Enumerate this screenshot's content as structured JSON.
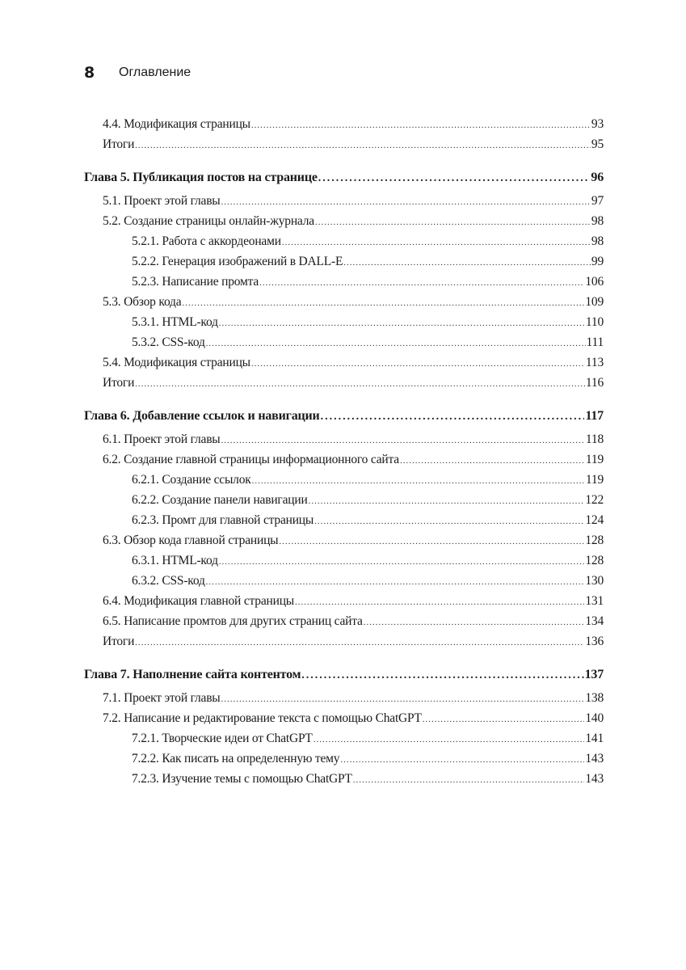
{
  "header": {
    "page_number": "8",
    "title": "Оглавление"
  },
  "entries": [
    {
      "level": 1,
      "title": "4.4. Модификация страницы",
      "page": "93"
    },
    {
      "level": 1,
      "title": "Итоги",
      "page": "95"
    },
    {
      "level": 0,
      "title": "Глава 5. Публикация постов на странице",
      "page": "96"
    },
    {
      "level": 1,
      "title": "5.1. Проект этой главы",
      "page": "97"
    },
    {
      "level": 1,
      "title": "5.2. Создание страницы онлайн-журнала",
      "page": "98"
    },
    {
      "level": 2,
      "title": "5.2.1. Работа с аккордеонами",
      "page": "98"
    },
    {
      "level": 2,
      "title": "5.2.2. Генерация изображений в DALL-E",
      "page": "99"
    },
    {
      "level": 2,
      "title": "5.2.3. Написание промта",
      "page": "106"
    },
    {
      "level": 1,
      "title": "5.3. Обзор кода",
      "page": "109"
    },
    {
      "level": 2,
      "title": "5.3.1. HTML-код",
      "page": "110"
    },
    {
      "level": 2,
      "title": "5.3.2. CSS-код",
      "page": "111"
    },
    {
      "level": 1,
      "title": "5.4. Модификация страницы",
      "page": "113"
    },
    {
      "level": 1,
      "title": "Итоги",
      "page": "116"
    },
    {
      "level": 0,
      "title": "Глава 6. Добавление ссылок и навигации",
      "page": "117"
    },
    {
      "level": 1,
      "title": "6.1. Проект этой главы",
      "page": "118"
    },
    {
      "level": 1,
      "title": "6.2. Создание главной страницы информационного сайта",
      "page": "119"
    },
    {
      "level": 2,
      "title": "6.2.1. Создание ссылок",
      "page": "119"
    },
    {
      "level": 2,
      "title": "6.2.2. Создание панели навигации",
      "page": "122"
    },
    {
      "level": 2,
      "title": "6.2.3. Промт для главной страницы",
      "page": "124"
    },
    {
      "level": 1,
      "title": "6.3. Обзор кода главной страницы",
      "page": "128"
    },
    {
      "level": 2,
      "title": "6.3.1. HTML-код",
      "page": "128"
    },
    {
      "level": 2,
      "title": "6.3.2. CSS-код",
      "page": "130"
    },
    {
      "level": 1,
      "title": "6.4. Модификация главной страницы",
      "page": "131"
    },
    {
      "level": 1,
      "title": "6.5. Написание промтов для других страниц сайта",
      "page": "134"
    },
    {
      "level": 1,
      "title": "Итоги",
      "page": "136"
    },
    {
      "level": 0,
      "title": "Глава 7. Наполнение сайта контентом",
      "page": "137"
    },
    {
      "level": 1,
      "title": "7.1. Проект этой главы",
      "page": "138"
    },
    {
      "level": 1,
      "title": "7.2. Написание и редактирование текста с помощью ChatGPT",
      "page": "140"
    },
    {
      "level": 2,
      "title": "7.2.1. Творческие идеи от ChatGPT",
      "page": "141"
    },
    {
      "level": 2,
      "title": "7.2.2. Как писать на определенную тему",
      "page": "143"
    },
    {
      "level": 2,
      "title": "7.2.3. Изучение темы с помощью ChatGPT",
      "page": "143"
    }
  ]
}
